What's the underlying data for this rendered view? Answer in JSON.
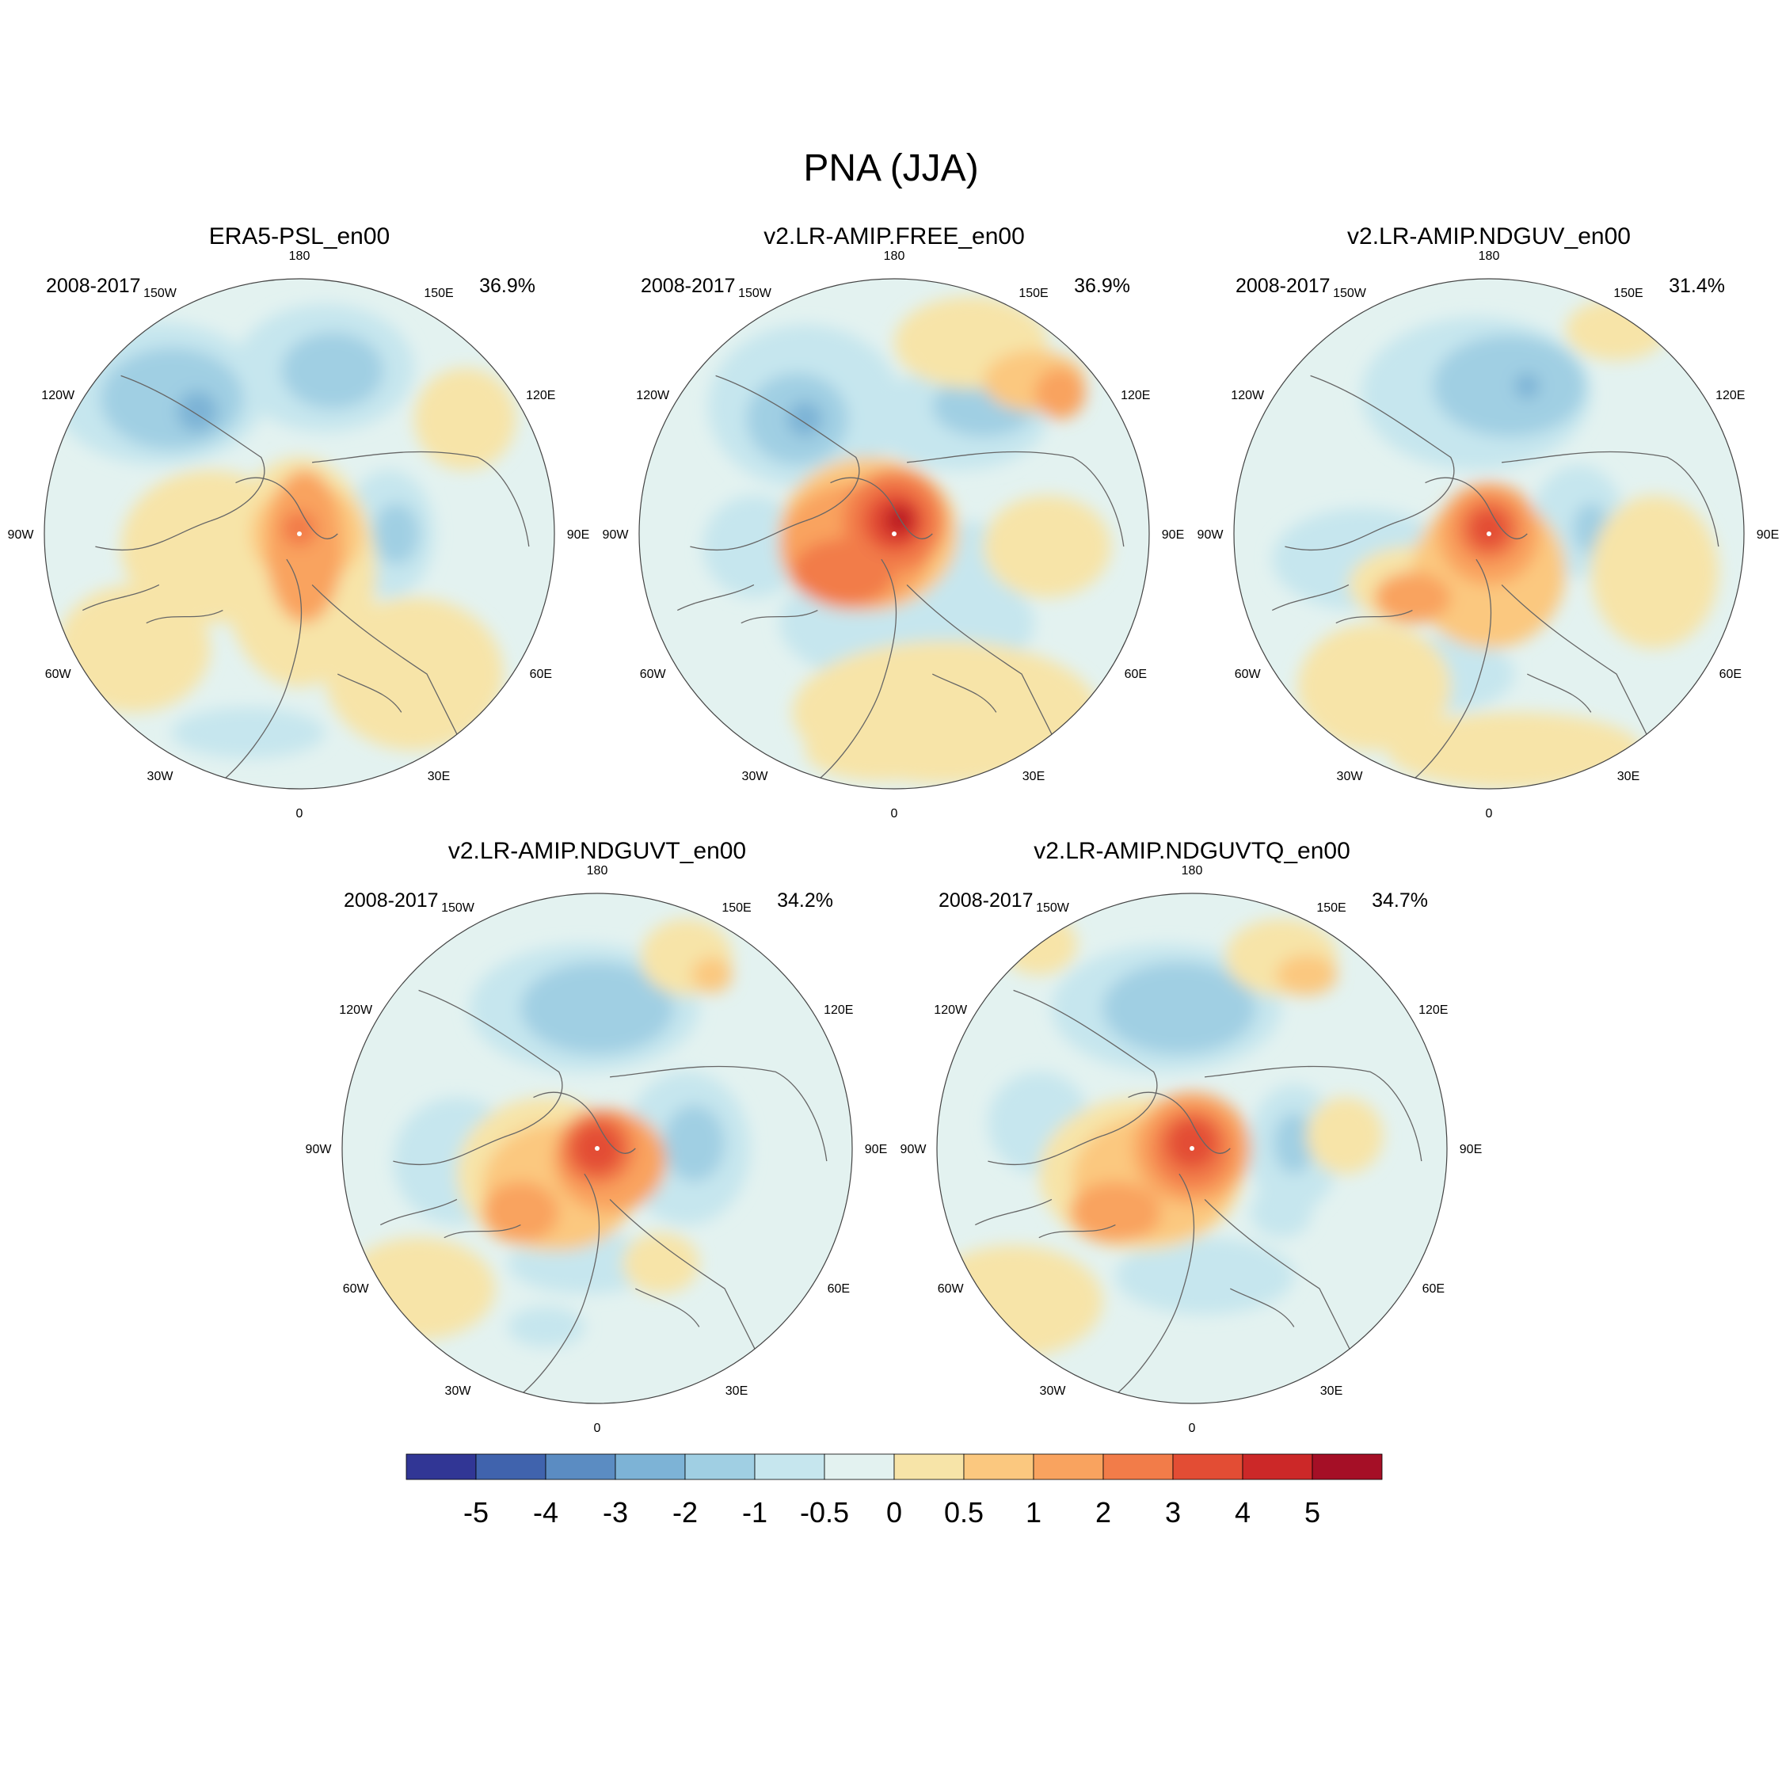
{
  "figure": {
    "title": "PNA (JJA)"
  },
  "panels": [
    {
      "title": "ERA5-PSL_en00",
      "period": "2008-2017",
      "variance": "36.9%"
    },
    {
      "title": "v2.LR-AMIP.FREE_en00",
      "period": "2008-2017",
      "variance": "36.9%"
    },
    {
      "title": "v2.LR-AMIP.NDGUV_en00",
      "period": "2008-2017",
      "variance": "31.4%"
    },
    {
      "title": "v2.LR-AMIP.NDGUVT_en00",
      "period": "2008-2017",
      "variance": "34.2%"
    },
    {
      "title": "v2.LR-AMIP.NDGUVTQ_en00",
      "period": "2008-2017",
      "variance": "34.7%"
    }
  ],
  "longitude_labels": [
    "180",
    "150E",
    "120E",
    "90E",
    "60E",
    "30E",
    "0",
    "30W",
    "60W",
    "90W",
    "120W",
    "150W"
  ],
  "colorbar": {
    "colors": [
      "#313695",
      "#4063ad",
      "#5b8cc2",
      "#7db3d6",
      "#a0cfe3",
      "#c6e6ee",
      "#e3f2f0",
      "#f7e4a8",
      "#fbc87f",
      "#f9a35f",
      "#f27c49",
      "#e34d34",
      "#cc2828",
      "#a50f26"
    ],
    "labels": [
      "-5",
      "-4",
      "-3",
      "-2",
      "-1",
      "-0.5",
      "0",
      "0.5",
      "1",
      "2",
      "3",
      "4",
      "5"
    ]
  },
  "colors": {
    "ocean_background": "#e3f2f0",
    "coastline": "#666666"
  }
}
